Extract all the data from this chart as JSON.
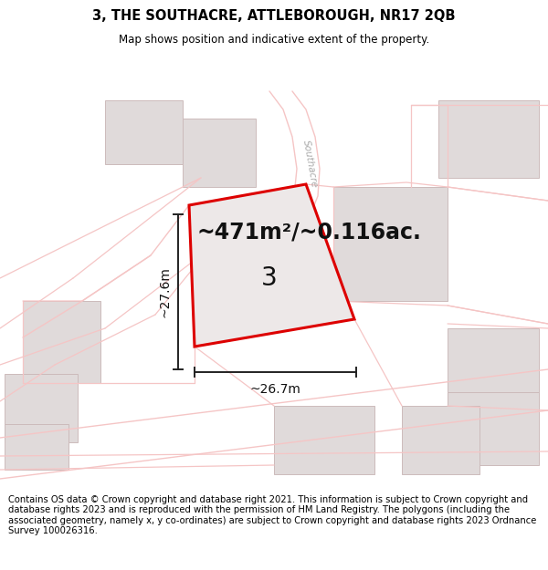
{
  "title": "3, THE SOUTHACRE, ATTLEBOROUGH, NR17 2QB",
  "subtitle": "Map shows position and indicative extent of the property.",
  "area_label": "~471m²/~0.116ac.",
  "plot_number": "3",
  "width_label": "~26.7m",
  "height_label": "~27.6m",
  "footer": "Contains OS data © Crown copyright and database right 2021. This information is subject to Crown copyright and database rights 2023 and is reproduced with the permission of HM Land Registry. The polygons (including the associated geometry, namely x, y co-ordinates) are subject to Crown copyright and database rights 2023 Ordnance Survey 100026316.",
  "bg_color": "#ffffff",
  "road_color": "#f5c5c5",
  "building_color": "#e0dada",
  "building_edge": "#ccbbbb",
  "plot_outline_color": "#dd0000",
  "plot_fill_color": "#ede8e8",
  "inner_fill": "#ddd5d5",
  "inner_edge": "#ccbbbb",
  "title_fontsize": 10.5,
  "subtitle_fontsize": 8.5,
  "footer_fontsize": 7.2,
  "area_fontsize": 17,
  "plot_num_fontsize": 20,
  "dim_fontsize": 10,
  "road_label_color": "#aaaaaa",
  "road_lw": 0.9,
  "plot_lw": 2.2,
  "inner_lw": 0.7
}
